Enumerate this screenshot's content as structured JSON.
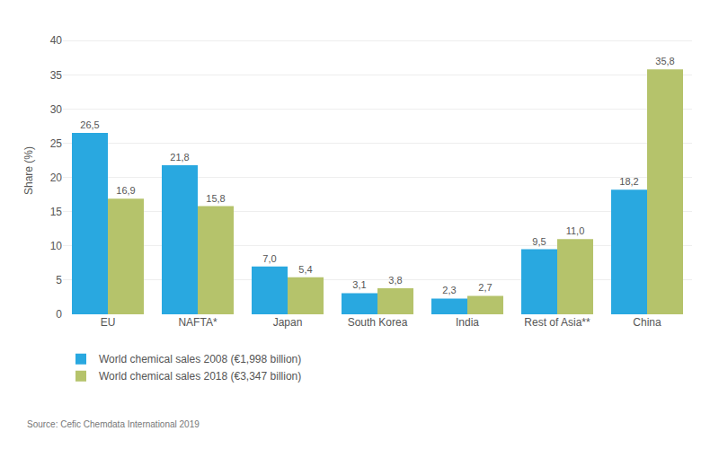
{
  "chart_data": {
    "type": "bar",
    "ylabel": "Share (%)",
    "categories": [
      "EU",
      "NAFTA*",
      "Japan",
      "South Korea",
      "India",
      "Rest of Asia**",
      "China"
    ],
    "series": [
      {
        "name": "World chemical sales 2008 (€1,998 billion)",
        "color": "#29A8E0",
        "values": [
          26.5,
          21.8,
          7.0,
          3.1,
          2.3,
          9.5,
          18.2
        ],
        "value_labels": [
          "26,5",
          "21,8",
          "7,0",
          "3,1",
          "2,3",
          "9,5",
          "18,2"
        ]
      },
      {
        "name": "World chemical sales 2018 (€3,347 billion)",
        "color": "#B5C36B",
        "values": [
          16.9,
          15.8,
          5.4,
          3.8,
          2.7,
          11.0,
          35.8
        ],
        "value_labels": [
          "16,9",
          "15,8",
          "5,4",
          "3,8",
          "2,7",
          "11,0",
          "35,8"
        ]
      }
    ],
    "ylim": [
      0,
      42
    ],
    "yticks": [
      0,
      5,
      10,
      15,
      20,
      25,
      30,
      35,
      40
    ],
    "grid": true,
    "legend": "bottom",
    "data_labels": true,
    "annotations": [
      "Source: Cefic Chemdata International 2019"
    ]
  }
}
